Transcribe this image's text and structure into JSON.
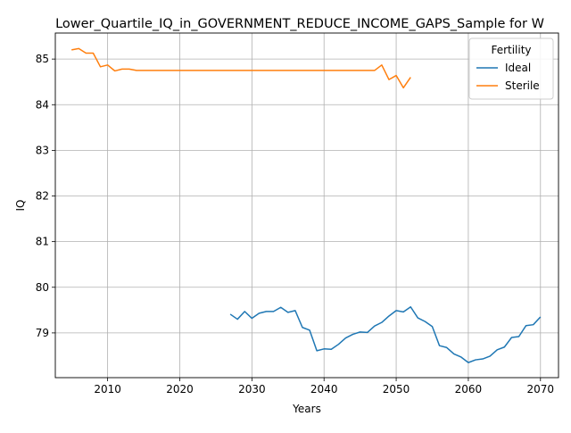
{
  "chart_data": {
    "type": "line",
    "title": "Lower_Quartile_IQ_in_GOVERNMENT_REDUCE_INCOME_GAPS_Sample for W",
    "xlabel": "Years",
    "ylabel": "IQ",
    "xlim": [
      2002.75,
      2072.5
    ],
    "ylim": [
      78.02,
      85.57
    ],
    "xticks": [
      2010,
      2020,
      2030,
      2040,
      2050,
      2060,
      2070
    ],
    "yticks": [
      79,
      80,
      81,
      82,
      83,
      84,
      85
    ],
    "grid": true,
    "legend": {
      "title": "Fertility",
      "placement": "top-right"
    },
    "series": [
      {
        "name": "Ideal",
        "color": "#1f77b4",
        "x": [
          2027,
          2028,
          2029,
          2030,
          2031,
          2032,
          2033,
          2034,
          2035,
          2036,
          2037,
          2038,
          2039,
          2040,
          2041,
          2042,
          2043,
          2044,
          2045,
          2046,
          2047,
          2048,
          2049,
          2050,
          2051,
          2052,
          2053,
          2054,
          2055,
          2056,
          2057,
          2058,
          2059,
          2060,
          2061,
          2062,
          2063,
          2064,
          2065,
          2066,
          2067,
          2068,
          2069,
          2070
        ],
        "values": [
          79.41,
          79.3,
          79.47,
          79.32,
          79.43,
          79.47,
          79.47,
          79.56,
          79.45,
          79.49,
          79.12,
          79.06,
          78.61,
          78.65,
          78.64,
          78.75,
          78.89,
          78.97,
          79.02,
          79.01,
          79.15,
          79.23,
          79.37,
          79.49,
          79.46,
          79.57,
          79.33,
          79.25,
          79.14,
          78.72,
          78.68,
          78.54,
          78.47,
          78.35,
          78.41,
          78.43,
          78.49,
          78.63,
          78.69,
          78.9,
          78.92,
          79.16,
          79.18,
          79.35
        ]
      },
      {
        "name": "Sterile",
        "color": "#ff7f0e",
        "x": [
          2005,
          2006,
          2007,
          2008,
          2009,
          2010,
          2011,
          2012,
          2013,
          2014,
          2015,
          2016,
          2017,
          2018,
          2019,
          2020,
          2021,
          2022,
          2023,
          2024,
          2025,
          2026,
          2027,
          2028,
          2029,
          2030,
          2031,
          2032,
          2033,
          2034,
          2035,
          2036,
          2037,
          2038,
          2039,
          2040,
          2041,
          2042,
          2043,
          2044,
          2045,
          2046,
          2047,
          2048,
          2049,
          2050,
          2051,
          2052
        ],
        "values": [
          85.2,
          85.23,
          85.13,
          85.13,
          84.83,
          84.87,
          84.74,
          84.78,
          84.78,
          84.75,
          84.75,
          84.75,
          84.75,
          84.75,
          84.75,
          84.75,
          84.75,
          84.75,
          84.75,
          84.75,
          84.75,
          84.75,
          84.75,
          84.75,
          84.75,
          84.75,
          84.75,
          84.75,
          84.75,
          84.75,
          84.75,
          84.75,
          84.75,
          84.75,
          84.75,
          84.75,
          84.75,
          84.75,
          84.75,
          84.75,
          84.75,
          84.75,
          84.75,
          84.87,
          84.55,
          84.64,
          84.37,
          84.6
        ]
      }
    ]
  }
}
